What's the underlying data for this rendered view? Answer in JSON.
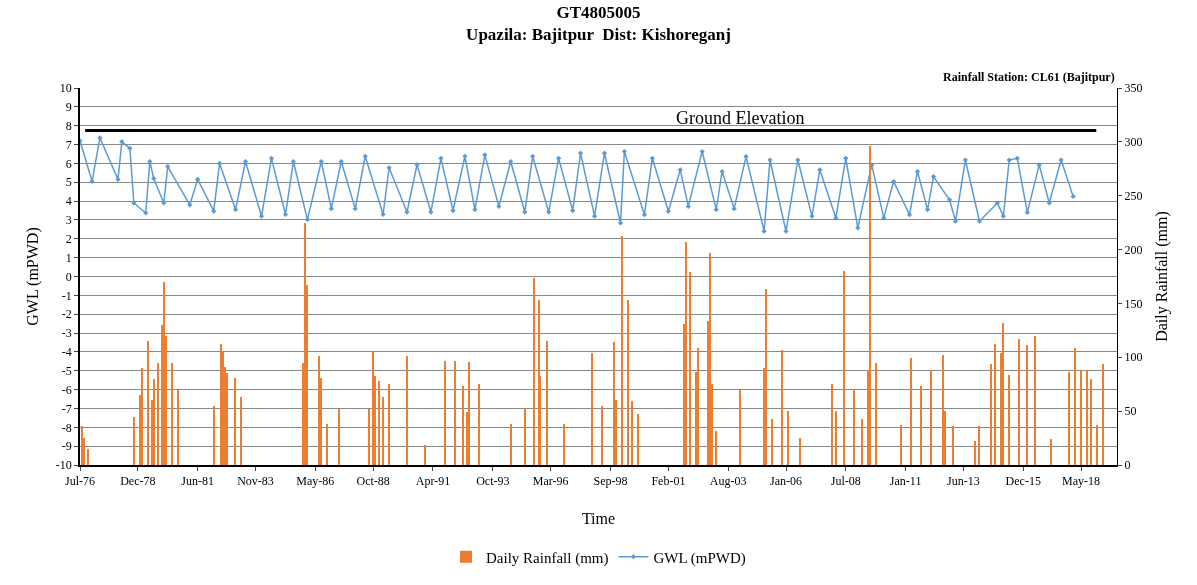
{
  "chart_data": {
    "type": "line",
    "title": "GT4805005",
    "subtitle": "Upazila: Bajitpur  Dist: Kishoreganj",
    "xlabel": "Time",
    "ylabel": "GWL (mPWD)",
    "y2label": "Daily Rainfall (mm)",
    "annotations": [
      "Rainfall Station: CL61 (Bajitpur)"
    ],
    "xlim": [
      "1976-07",
      "2019-11"
    ],
    "xticks": [
      {
        "value": "1976-07",
        "label": "Jul-76"
      },
      {
        "value": "1978-12",
        "label": "Dec-78"
      },
      {
        "value": "1981-06",
        "label": "Jun-81"
      },
      {
        "value": "1983-11",
        "label": "Nov-83"
      },
      {
        "value": "1986-05",
        "label": "May-86"
      },
      {
        "value": "1988-10",
        "label": "Oct-88"
      },
      {
        "value": "1991-04",
        "label": "Apr-91"
      },
      {
        "value": "1993-10",
        "label": "Oct-93"
      },
      {
        "value": "1996-03",
        "label": "Mar-96"
      },
      {
        "value": "1998-09",
        "label": "Sep-98"
      },
      {
        "value": "2001-02",
        "label": "Feb-01"
      },
      {
        "value": "2003-08",
        "label": "Aug-03"
      },
      {
        "value": "2006-01",
        "label": "Jan-06"
      },
      {
        "value": "2008-07",
        "label": "Jul-08"
      },
      {
        "value": "2011-01",
        "label": "Jan-11"
      },
      {
        "value": "2013-06",
        "label": "Jun-13"
      },
      {
        "value": "2015-12",
        "label": "Dec-15"
      },
      {
        "value": "2018-05",
        "label": "May-18"
      }
    ],
    "ylim": [
      -10,
      10
    ],
    "yticks": [
      -10,
      -9,
      -8,
      -7,
      -6,
      -5,
      -4,
      -3,
      -2,
      -1,
      0,
      1,
      2,
      3,
      4,
      5,
      6,
      7,
      8,
      9,
      10
    ],
    "y2lim": [
      0,
      350
    ],
    "y2ticks": [
      0,
      50,
      100,
      150,
      200,
      250,
      300,
      350
    ],
    "grid": "y",
    "legend": "bottom",
    "ref_lines": [
      {
        "axis": "y",
        "value": 7.75,
        "label": "Ground Elevation",
        "color": "#000000"
      }
    ],
    "series": [
      {
        "type": "bar",
        "name": "Daily Rainfall (mm)",
        "color": "#ed7d31",
        "axis": "y2",
        "x": [
          "1976-08",
          "1976-09",
          "1976-11",
          "1978-10",
          "1979-01",
          "1979-02",
          "1979-05",
          "1979-07",
          "1979-08",
          "1979-10",
          "1979-12",
          "1980-01",
          "1980-02",
          "1980-05",
          "1980-08",
          "1982-02",
          "1982-06",
          "1982-07",
          "1982-08",
          "1982-09",
          "1983-01",
          "1983-04",
          "1985-11",
          "1985-12",
          "1986-01",
          "1986-07",
          "1986-08",
          "1986-11",
          "1987-05",
          "1988-08",
          "1988-10",
          "1988-11",
          "1989-01",
          "1989-03",
          "1989-06",
          "1990-03",
          "1990-12",
          "1991-10",
          "1992-03",
          "1992-07",
          "1992-09",
          "1992-10",
          "1993-03",
          "1994-07",
          "1995-02",
          "1995-07",
          "1995-09",
          "1995-10",
          "1996-01",
          "1996-10",
          "1997-12",
          "1998-05",
          "1998-11",
          "1998-12",
          "1999-03",
          "1999-06",
          "1999-08",
          "1999-11",
          "2001-10",
          "2001-11",
          "2002-01",
          "2002-04",
          "2002-05",
          "2002-10",
          "2002-11",
          "2002-12",
          "2003-02",
          "2004-02",
          "2005-02",
          "2005-03",
          "2005-06",
          "2005-11",
          "2006-02",
          "2006-08",
          "2007-12",
          "2008-02",
          "2008-06",
          "2008-11",
          "2009-03",
          "2009-06",
          "2009-07",
          "2009-10",
          "2010-11",
          "2011-04",
          "2011-09",
          "2012-02",
          "2012-08",
          "2012-09",
          "2013-01",
          "2013-12",
          "2014-02",
          "2014-08",
          "2014-10",
          "2015-01",
          "2015-02",
          "2015-05",
          "2015-10",
          "2016-02",
          "2016-06",
          "2017-02",
          "2017-11",
          "2018-02",
          "2018-05",
          "2018-08",
          "2018-10",
          "2019-01",
          "2019-04"
        ],
        "values": [
          36,
          25,
          15,
          45,
          65,
          90,
          115,
          60,
          80,
          95,
          130,
          170,
          120,
          95,
          70,
          55,
          112,
          106,
          91,
          85,
          81,
          63,
          95,
          225,
          167,
          101,
          81,
          38,
          52,
          52,
          105,
          83,
          78,
          63,
          75,
          101,
          19,
          97,
          97,
          73,
          49,
          96,
          75,
          38,
          53,
          174,
          153,
          83,
          115,
          38,
          104,
          55,
          114,
          60,
          213,
          153,
          59,
          47,
          131,
          207,
          179,
          86,
          109,
          134,
          197,
          75,
          32,
          70,
          90,
          163,
          43,
          107,
          50,
          25,
          75,
          50,
          180,
          71,
          43,
          88,
          296,
          95,
          37,
          99,
          73,
          88,
          102,
          50,
          36,
          22,
          36,
          94,
          112,
          104,
          132,
          84,
          117,
          111,
          120,
          24,
          86,
          109,
          88,
          88,
          80,
          37,
          94
        ]
      },
      {
        "name": "GWL (mPWD)",
        "color": "#5b9bd5",
        "marker": "diamond",
        "x": [
          "1976-07",
          "1977-01",
          "1977-05",
          "1978-02",
          "1978-04",
          "1978-08",
          "1978-10",
          "1979-04",
          "1979-06",
          "1979-08",
          "1980-01",
          "1980-03",
          "1981-02",
          "1981-06",
          "1982-02",
          "1982-05",
          "1983-01",
          "1983-06",
          "1984-02",
          "1984-07",
          "1985-02",
          "1985-06",
          "1986-01",
          "1986-08",
          "1987-01",
          "1987-06",
          "1988-01",
          "1988-06",
          "1989-03",
          "1989-06",
          "1990-03",
          "1990-08",
          "1991-03",
          "1991-08",
          "1992-02",
          "1992-08",
          "1993-01",
          "1993-06",
          "1994-01",
          "1994-07",
          "1995-02",
          "1995-06",
          "1996-02",
          "1996-07",
          "1997-02",
          "1997-06",
          "1998-01",
          "1998-06",
          "1999-02",
          "1999-04",
          "2000-02",
          "2000-06",
          "2001-02",
          "2001-08",
          "2001-12",
          "2002-07",
          "2003-02",
          "2003-05",
          "2003-11",
          "2004-05",
          "2005-02",
          "2005-05",
          "2006-01",
          "2006-07",
          "2007-02",
          "2007-06",
          "2008-02",
          "2008-07",
          "2009-01",
          "2009-08",
          "2010-02",
          "2010-07",
          "2011-03",
          "2011-07",
          "2011-12",
          "2012-03",
          "2012-11",
          "2013-02",
          "2013-07",
          "2014-02",
          "2014-11",
          "2015-02",
          "2015-05",
          "2015-09",
          "2016-02",
          "2016-08",
          "2017-01",
          "2017-07",
          "2018-01"
        ],
        "values": [
          7.2,
          5.05,
          7.35,
          5.15,
          7.15,
          6.8,
          3.9,
          3.37,
          6.1,
          5.2,
          3.9,
          5.83,
          3.8,
          5.15,
          3.47,
          6.0,
          3.55,
          6.1,
          3.2,
          6.27,
          3.29,
          6.1,
          3.02,
          6.1,
          3.6,
          6.1,
          3.6,
          6.38,
          3.3,
          5.77,
          3.42,
          5.93,
          3.42,
          6.27,
          3.5,
          6.38,
          3.55,
          6.45,
          3.72,
          6.1,
          3.42,
          6.38,
          3.42,
          6.27,
          3.5,
          6.54,
          3.2,
          6.54,
          2.84,
          6.63,
          3.28,
          6.27,
          3.46,
          5.66,
          3.72,
          6.63,
          3.55,
          5.57,
          3.6,
          6.36,
          2.4,
          6.18,
          2.4,
          6.18,
          3.2,
          5.66,
          3.11,
          6.27,
          2.58,
          5.92,
          3.11,
          5.04,
          3.28,
          5.57,
          3.55,
          5.3,
          4.07,
          2.93,
          6.18,
          2.93,
          3.9,
          3.2,
          6.18,
          6.27,
          3.4,
          5.92,
          3.9,
          6.18,
          4.25
        ]
      }
    ]
  }
}
